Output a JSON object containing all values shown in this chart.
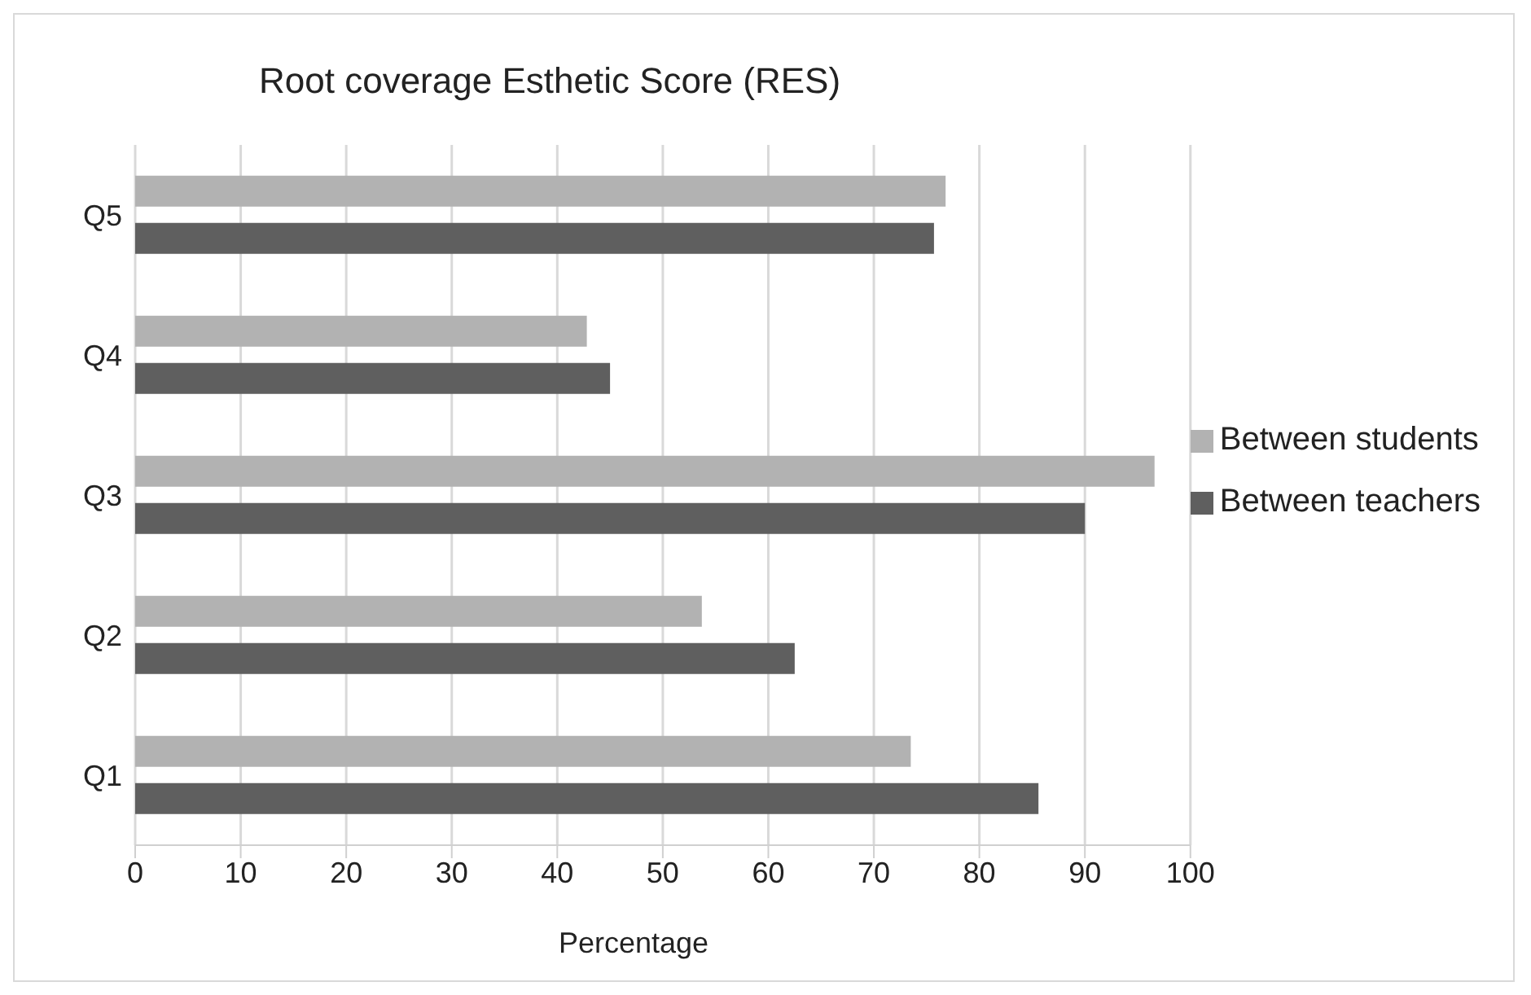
{
  "chart_data": {
    "type": "bar",
    "orientation": "horizontal",
    "title": "Root coverage Esthetic Score (RES)",
    "xlabel": "Percentage",
    "categories": [
      "Q5",
      "Q4",
      "Q3",
      "Q2",
      "Q1"
    ],
    "series": [
      {
        "name": "Between students",
        "color": "#b2b2b2",
        "values": [
          76.8,
          42.8,
          96.6,
          53.7,
          73.5
        ]
      },
      {
        "name": "Between teachers",
        "color": "#5f5f5f",
        "values": [
          75.7,
          45,
          90,
          62.5,
          85.6
        ]
      }
    ],
    "xlim": [
      0,
      100
    ],
    "xticks": [
      0,
      10,
      20,
      30,
      40,
      50,
      60,
      70,
      80,
      90,
      100
    ],
    "grid": "x",
    "legend": "right"
  }
}
